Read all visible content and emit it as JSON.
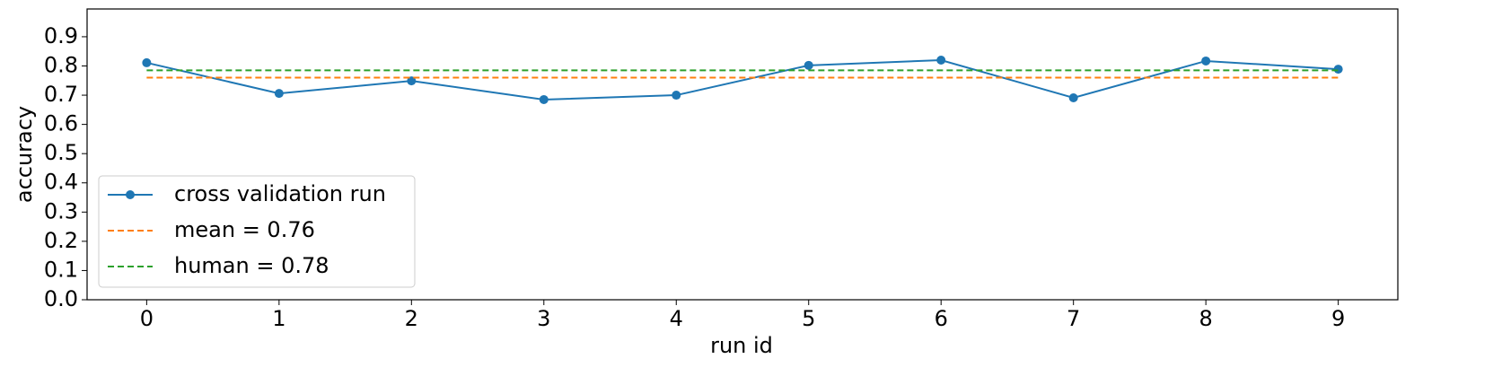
{
  "chart_data": {
    "type": "line",
    "x_label": "run id",
    "y_label": "accuracy",
    "x": [
      0,
      1,
      2,
      3,
      4,
      5,
      6,
      7,
      8,
      9
    ],
    "series": [
      {
        "name": "cross validation run",
        "color": "#1f77b4",
        "style": "solid",
        "marker": true,
        "values": [
          0.811,
          0.706,
          0.749,
          0.685,
          0.7,
          0.802,
          0.82,
          0.691,
          0.817,
          0.789
        ]
      },
      {
        "name": "mean = 0.76",
        "color": "#ff7f0e",
        "style": "dashed",
        "marker": false,
        "values": [
          0.76,
          0.76,
          0.76,
          0.76,
          0.76,
          0.76,
          0.76,
          0.76,
          0.76,
          0.76
        ]
      },
      {
        "name": "human = 0.78",
        "color": "#2ca02c",
        "style": "dashed",
        "marker": false,
        "values": [
          0.785,
          0.785,
          0.785,
          0.785,
          0.785,
          0.785,
          0.785,
          0.785,
          0.785,
          0.785
        ]
      }
    ],
    "xlim": [
      -0.45,
      9.45
    ],
    "xticks": [
      0,
      1,
      2,
      3,
      4,
      5,
      6,
      7,
      8,
      9
    ],
    "ylim": [
      0,
      0.995
    ],
    "yticks": [
      {
        "value": 0,
        "label": "0.0"
      },
      0.1,
      0.2,
      0.3,
      0.4,
      0.5,
      0.6,
      0.7,
      0.8,
      0.9
    ],
    "legend": "lower left"
  }
}
